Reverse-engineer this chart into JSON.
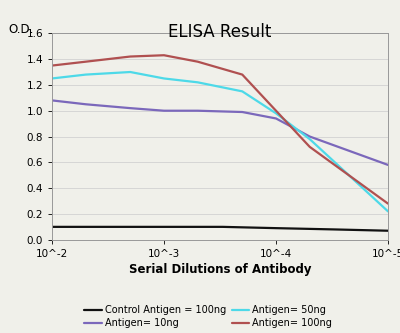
{
  "title": "ELISA Result",
  "xlabel": "Serial Dilutions of Antibody",
  "ylabel": "O.D.",
  "background_color": "#f0f0ea",
  "xlim": [
    0.01,
    1e-05
  ],
  "ylim": [
    0,
    1.6
  ],
  "yticks": [
    0,
    0.2,
    0.4,
    0.6,
    0.8,
    1.0,
    1.2,
    1.4,
    1.6
  ],
  "xticks": [
    0.01,
    0.001,
    0.0001,
    1e-05
  ],
  "lines": {
    "control": {
      "label": "Control Antigen = 100ng",
      "color": "#111111",
      "x": [
        0.01,
        0.003,
        0.001,
        0.0003,
        0.0001,
        3e-05,
        1e-05
      ],
      "y": [
        0.1,
        0.1,
        0.1,
        0.1,
        0.09,
        0.08,
        0.07
      ]
    },
    "antigen10": {
      "label": "Antigen= 10ng",
      "color": "#7b68bb",
      "x": [
        0.01,
        0.005,
        0.002,
        0.001,
        0.0005,
        0.0002,
        0.0001,
        5e-05,
        1e-05
      ],
      "y": [
        1.08,
        1.05,
        1.02,
        1.0,
        1.0,
        0.99,
        0.94,
        0.8,
        0.58
      ]
    },
    "antigen50": {
      "label": "Antigen= 50ng",
      "color": "#4dd9e8",
      "x": [
        0.01,
        0.005,
        0.002,
        0.001,
        0.0005,
        0.0002,
        0.0001,
        5e-05,
        1e-05
      ],
      "y": [
        1.25,
        1.28,
        1.3,
        1.25,
        1.22,
        1.15,
        0.98,
        0.78,
        0.22
      ]
    },
    "antigen100": {
      "label": "Antigen= 100ng",
      "color": "#b05050",
      "x": [
        0.01,
        0.005,
        0.002,
        0.001,
        0.0005,
        0.0002,
        0.0001,
        5e-05,
        1e-05
      ],
      "y": [
        1.35,
        1.38,
        1.42,
        1.43,
        1.38,
        1.28,
        1.0,
        0.72,
        0.28
      ]
    }
  },
  "title_fontsize": 12,
  "label_fontsize": 8.5,
  "tick_fontsize": 7.5,
  "legend_fontsize": 7.0,
  "linewidth": 1.6,
  "grid_color": "#cccccc",
  "grid_linewidth": 0.5
}
